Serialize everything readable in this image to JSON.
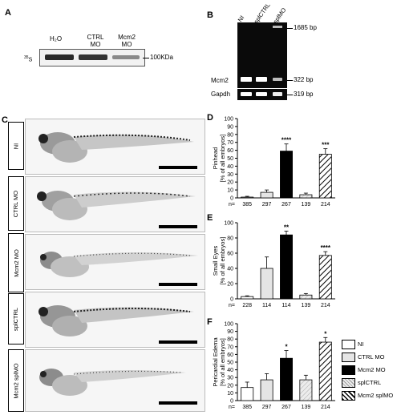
{
  "panels": {
    "A": {
      "label": "A",
      "lanes": [
        "H₂O",
        "CTRL MO",
        "Mcm2 MO"
      ],
      "isotope": "35S",
      "marker": "100KDa"
    },
    "B": {
      "label": "B",
      "lanes": [
        "NI",
        "splCTRL",
        "splMO"
      ],
      "rows": [
        "Mcm2",
        "Gapdh"
      ],
      "sizes": [
        "1685 bp",
        "322 bp",
        "319 bp"
      ]
    },
    "C": {
      "label": "C",
      "conditions": [
        "NI",
        "CTRL MO",
        "Mcm2 MO",
        "splCTRL",
        "Mcm2 splMO"
      ]
    }
  },
  "legend": [
    {
      "name": "NI",
      "fill": "#ffffff",
      "pattern": "none"
    },
    {
      "name": "CTRL MO",
      "fill": "#e5e5e5",
      "pattern": "none"
    },
    {
      "name": "Mcm2 MO",
      "fill": "#000000",
      "pattern": "none"
    },
    {
      "name": "splCTRL",
      "fill": "#ffffff",
      "pattern": "light-hatch"
    },
    {
      "name": "Mcm2 splMO",
      "fill": "#ffffff",
      "pattern": "hatch"
    }
  ],
  "chart_data": [
    {
      "panel": "D",
      "type": "bar",
      "ylabel": [
        "Pinhead",
        "[% of all embryos]"
      ],
      "ylim": [
        0,
        100
      ],
      "yticks": [
        0,
        10,
        20,
        30,
        40,
        50,
        60,
        70,
        80,
        90,
        100
      ],
      "categories": [
        "NI",
        "CTRL MO",
        "Mcm2 MO",
        "splCTRL",
        "Mcm2 splMO"
      ],
      "values": [
        1,
        7,
        59,
        4,
        55
      ],
      "errors": [
        1,
        3,
        9,
        2,
        7
      ],
      "n_prefix": "n=",
      "n": [
        "385",
        "297",
        "267",
        "139",
        "214"
      ],
      "significance": [
        "",
        "",
        "****",
        "",
        "***"
      ]
    },
    {
      "panel": "E",
      "type": "bar",
      "ylabel": [
        "Small Eyes",
        "[% of all embryos]"
      ],
      "ylim": [
        0,
        100
      ],
      "yticks": [
        0,
        20,
        40,
        60,
        80,
        100
      ],
      "categories": [
        "NI",
        "CTRL MO",
        "Mcm2 MO",
        "splCTRL",
        "Mcm2 splMO"
      ],
      "values": [
        3,
        40,
        84,
        5,
        57
      ],
      "errors": [
        1,
        15,
        5,
        2,
        5
      ],
      "n_prefix": "n=",
      "n": [
        "228",
        "114",
        "114",
        "139",
        "214"
      ],
      "significance": [
        "",
        "",
        "**",
        "",
        "****"
      ]
    },
    {
      "panel": "F",
      "type": "bar",
      "ylabel": [
        "Pericardial Edema",
        "[% of all embryos]"
      ],
      "ylim": [
        0,
        100
      ],
      "yticks": [
        0,
        10,
        20,
        30,
        40,
        50,
        60,
        70,
        80,
        90,
        100
      ],
      "categories": [
        "NI",
        "CTRL MO",
        "Mcm2 MO",
        "splCTRL",
        "Mcm2 splMO"
      ],
      "values": [
        17,
        27,
        55,
        27,
        76
      ],
      "errors": [
        7,
        8,
        10,
        6,
        6
      ],
      "n_prefix": "n=",
      "n": [
        "385",
        "297",
        "267",
        "139",
        "214"
      ],
      "significance": [
        "",
        "",
        "*",
        "",
        "*"
      ]
    }
  ]
}
